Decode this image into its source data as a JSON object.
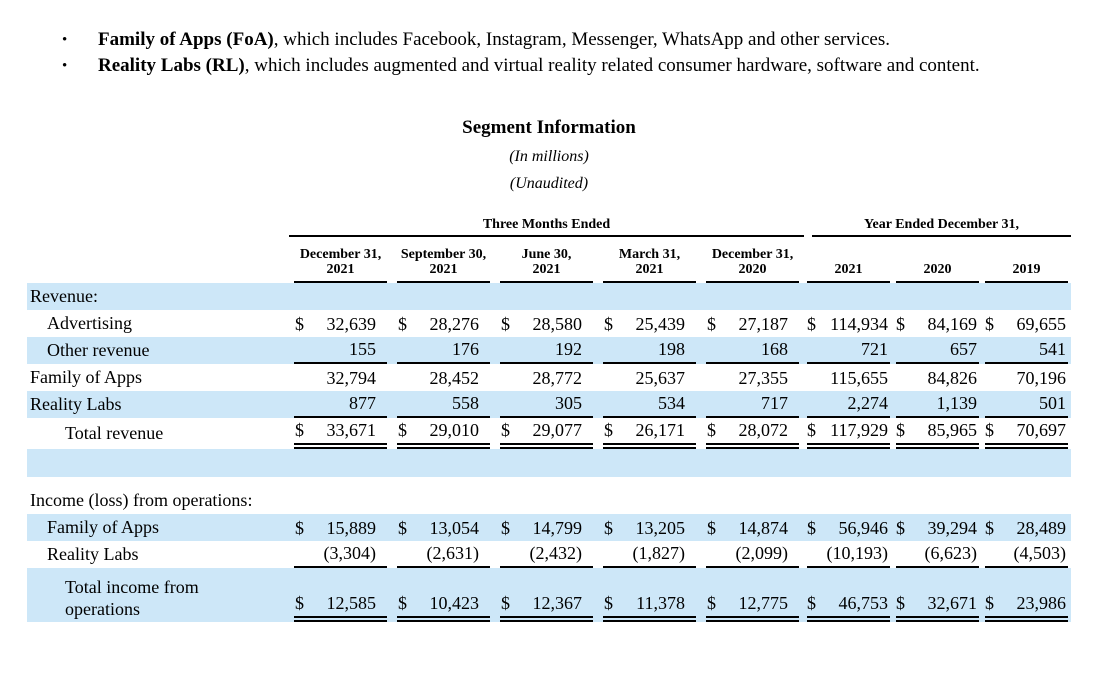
{
  "colors": {
    "row_shade": "#cde7f8",
    "text": "#000000",
    "rule": "#000000"
  },
  "page": {
    "bullet_glyph": "•",
    "bullets": [
      {
        "bold": "Family of Apps (FoA)",
        "rest": ", which includes Facebook, Instagram, Messenger, WhatsApp and other services."
      },
      {
        "bold": "Reality Labs (RL)",
        "rest": ", which includes augmented and virtual reality related consumer hardware, software and content."
      }
    ],
    "title": "Segment Information",
    "subtitle1": "(In millions)",
    "subtitle2": "(Unaudited)"
  },
  "table": {
    "group_headers": {
      "three_months": "Three Months Ended",
      "year_ended": "Year Ended December 31,"
    },
    "quarter_columns": [
      {
        "line1": "December 31,",
        "line2": "2021"
      },
      {
        "line1": "September 30,",
        "line2": "2021"
      },
      {
        "line1": "June 30,",
        "line2": "2021"
      },
      {
        "line1": "March 31,",
        "line2": "2021"
      },
      {
        "line1": "December 31,",
        "line2": "2020"
      }
    ],
    "year_columns": [
      "2021",
      "2020",
      "2019"
    ],
    "sections": {
      "revenue": {
        "heading": "Revenue:",
        "rows": {
          "advertising": {
            "label": "Advertising",
            "cur": "$",
            "values": [
              "32,639",
              "28,276",
              "28,580",
              "25,439",
              "27,187",
              "114,934",
              "84,169",
              "69,655"
            ]
          },
          "other_revenue": {
            "label": "Other revenue",
            "values": [
              "155",
              "176",
              "192",
              "198",
              "168",
              "721",
              "657",
              "541"
            ]
          },
          "family_of_apps": {
            "label": "Family of Apps",
            "values": [
              "32,794",
              "28,452",
              "28,772",
              "25,637",
              "27,355",
              "115,655",
              "84,826",
              "70,196"
            ]
          },
          "reality_labs": {
            "label": "Reality Labs",
            "values": [
              "877",
              "558",
              "305",
              "534",
              "717",
              "2,274",
              "1,139",
              "501"
            ]
          },
          "total_revenue": {
            "label": "Total revenue",
            "cur": "$",
            "values": [
              "33,671",
              "29,010",
              "29,077",
              "26,171",
              "28,072",
              "117,929",
              "85,965",
              "70,697"
            ]
          }
        }
      },
      "income": {
        "heading": "Income (loss) from operations:",
        "rows": {
          "family_of_apps": {
            "label": "Family of Apps",
            "cur": "$",
            "values": [
              "15,889",
              "13,054",
              "14,799",
              "13,205",
              "14,874",
              "56,946",
              "39,294",
              "28,489"
            ]
          },
          "reality_labs": {
            "label": "Reality Labs",
            "values": [
              "(3,304)",
              "(2,631)",
              "(2,432)",
              "(1,827)",
              "(2,099)",
              "(10,193)",
              "(6,623)",
              "(4,503)"
            ]
          },
          "total_income": {
            "label": "Total income from operations",
            "cur": "$",
            "values": [
              "12,585",
              "10,423",
              "12,367",
              "11,378",
              "12,775",
              "46,753",
              "32,671",
              "23,986"
            ]
          }
        }
      }
    }
  }
}
